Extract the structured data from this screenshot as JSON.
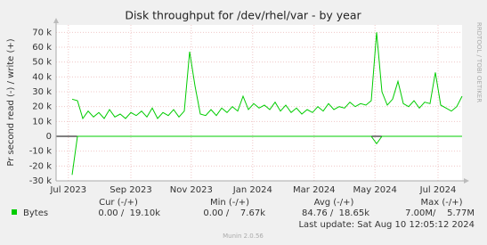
{
  "chart_data": {
    "type": "line",
    "title": "Disk throughput for /dev/rhel/var - by year",
    "y_label": "Pr second read (-) / write (+)",
    "side_label": "RRDTOOL / TOBI OETIKER",
    "categories": [
      null,
      null,
      null,
      null,
      null,
      null,
      null,
      null,
      null,
      null,
      null,
      null,
      null,
      null,
      null,
      null,
      null,
      null,
      null,
      null,
      null,
      null,
      null,
      null,
      null,
      null,
      null,
      null,
      null,
      null,
      null,
      null,
      null,
      null,
      null,
      null,
      null,
      null,
      null,
      null,
      null,
      null,
      null,
      null,
      null,
      null,
      null,
      null,
      null,
      null,
      null,
      null,
      null,
      null,
      null,
      null,
      null,
      null,
      null,
      null,
      null,
      null,
      null,
      null,
      null,
      null,
      null,
      null,
      null,
      null,
      null,
      null,
      null,
      null,
      null,
      null,
      null
    ],
    "series": [
      {
        "name": "Bytes",
        "color": "#00cc00",
        "values": [
          null,
          null,
          null,
          25000,
          24000,
          12000,
          17000,
          13000,
          16000,
          12000,
          18000,
          13000,
          15000,
          12000,
          16000,
          14000,
          17000,
          13000,
          19000,
          12000,
          16000,
          14000,
          18000,
          13000,
          17000,
          57000,
          34000,
          15000,
          14000,
          18000,
          14000,
          19000,
          16000,
          20000,
          17000,
          27000,
          18000,
          22000,
          19000,
          21000,
          18000,
          23000,
          17000,
          21000,
          16000,
          19000,
          15000,
          18000,
          16000,
          20000,
          17000,
          22000,
          18000,
          20000,
          19000,
          23000,
          20000,
          22000,
          21000,
          24000,
          70000,
          30000,
          21000,
          25000,
          37000,
          22000,
          20000,
          24000,
          19000,
          23000,
          22000,
          43000,
          21000,
          19000,
          17000,
          20000,
          27000
        ]
      },
      {
        "color": "#00cc00",
        "values": [
          null,
          null,
          null,
          -26000,
          0,
          0,
          0,
          0,
          0,
          0,
          0,
          0,
          0,
          0,
          0,
          0,
          0,
          0,
          0,
          0,
          0,
          0,
          0,
          0,
          0,
          0,
          0,
          0,
          0,
          0,
          0,
          0,
          0,
          0,
          0,
          0,
          0,
          0,
          0,
          0,
          0,
          0,
          0,
          0,
          0,
          0,
          0,
          0,
          0,
          0,
          0,
          0,
          0,
          0,
          0,
          0,
          0,
          0,
          0,
          0,
          -5000,
          0,
          0,
          0,
          0,
          0,
          0,
          0,
          0,
          0,
          0,
          0,
          0,
          0,
          0,
          0,
          0
        ]
      }
    ],
    "xlim": [
      0,
      76
    ],
    "xticks": [
      {
        "value": 2.3,
        "label": "Jul 2023"
      },
      {
        "value": 14,
        "label": "Sep 2023"
      },
      {
        "value": 25.3,
        "label": "Nov 2023"
      },
      {
        "value": 36.8,
        "label": "Jan 2024"
      },
      {
        "value": 48.3,
        "label": "Mar 2024"
      },
      {
        "value": 59.7,
        "label": "May 2024"
      },
      {
        "value": 71.5,
        "label": "Jul 2024"
      }
    ],
    "ylim": [
      -30000,
      75000
    ],
    "yticks": [
      {
        "value": -30000,
        "label": "-30 k"
      },
      {
        "value": -20000,
        "label": "-20 k"
      },
      {
        "value": -10000,
        "label": "-10 k"
      },
      0,
      {
        "value": 10000,
        "label": "10 k"
      },
      {
        "value": 20000,
        "label": "20 k"
      },
      {
        "value": 30000,
        "label": "30 k"
      },
      {
        "value": 40000,
        "label": "40 k"
      },
      {
        "value": 50000,
        "label": "50 k"
      },
      {
        "value": 60000,
        "label": "60 k"
      },
      {
        "value": 70000,
        "label": "70 k"
      }
    ],
    "grid": true,
    "summary": {
      "headers": [
        "Cur (-/+)",
        "Min (-/+)",
        "Avg (-/+)",
        "Max (-/+)"
      ],
      "cells": [
        "0.00 /  19.10k",
        "0.00 /    7.67k",
        "84.76 /  18.65k",
        "7.00M/    5.77M"
      ]
    },
    "last_update": "Last update: Sat Aug 10 12:05:12 2024",
    "footer": "Munin 2.0.56"
  }
}
